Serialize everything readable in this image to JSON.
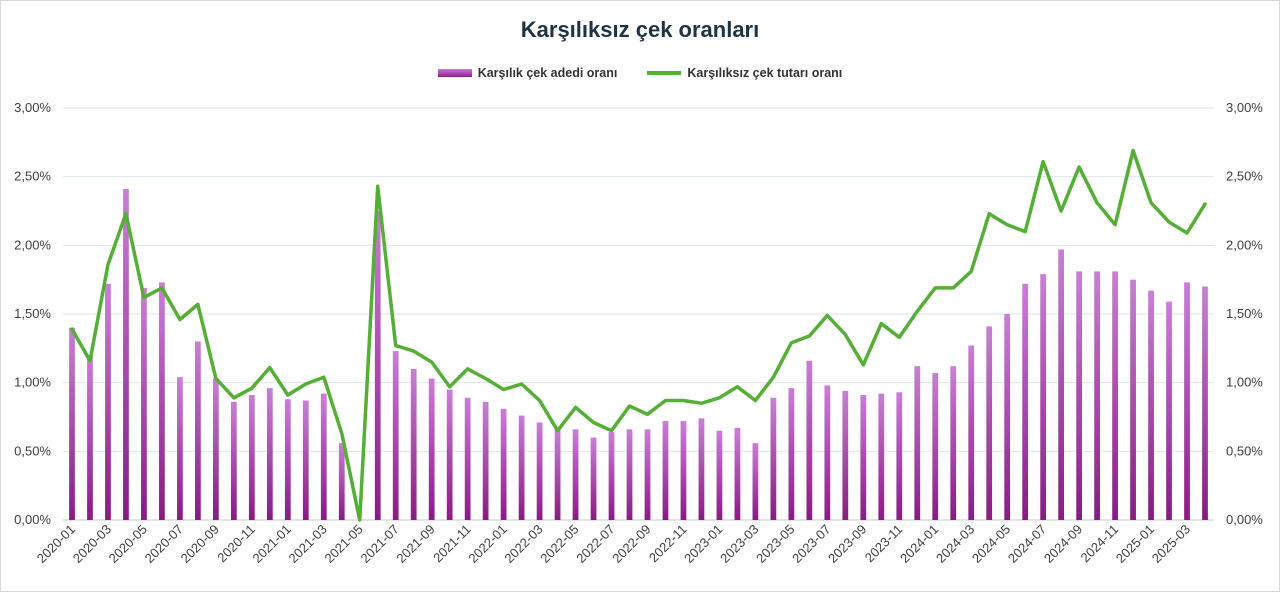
{
  "chart_data": {
    "type": "bar+line",
    "title": "Karşılıksız çek oranları",
    "y_left": {
      "min": 0,
      "max": 3.0,
      "ticks": [
        "0,00%",
        "0,50%",
        "1,00%",
        "1,50%",
        "2,00%",
        "2,50%",
        "3,00%"
      ]
    },
    "y_right": {
      "min": 0,
      "max": 3.0,
      "ticks": [
        "0,00%",
        "0,50%",
        "1,00%",
        "1,50%",
        "2,00%",
        "2,50%",
        "3,00%"
      ]
    },
    "x_tick_labels": [
      "2020-01",
      "2020-03",
      "2020-05",
      "2020-07",
      "2020-09",
      "2020-11",
      "2021-01",
      "2021-03",
      "2021-05",
      "2021-07",
      "2021-09",
      "2021-11",
      "2022-01",
      "2022-03",
      "2022-05",
      "2022-07",
      "2022-09",
      "2022-11",
      "2023-01",
      "2023-03",
      "2023-05",
      "2023-07",
      "2023-09",
      "2023-11",
      "2024-01",
      "2024-03",
      "2024-05",
      "2024-07",
      "2024-09",
      "2024-11",
      "2025-01",
      "2025-03"
    ],
    "categories": [
      "2020-01",
      "2020-02",
      "2020-03",
      "2020-04",
      "2020-05",
      "2020-06",
      "2020-07",
      "2020-08",
      "2020-09",
      "2020-10",
      "2020-11",
      "2020-12",
      "2021-01",
      "2021-02",
      "2021-03",
      "2021-04",
      "2021-05",
      "2021-06",
      "2021-07",
      "2021-08",
      "2021-09",
      "2021-10",
      "2021-11",
      "2021-12",
      "2022-01",
      "2022-02",
      "2022-03",
      "2022-04",
      "2022-05",
      "2022-06",
      "2022-07",
      "2022-08",
      "2022-09",
      "2022-10",
      "2022-11",
      "2022-12",
      "2023-01",
      "2023-02",
      "2023-03",
      "2023-04",
      "2023-05",
      "2023-06",
      "2023-07",
      "2023-08",
      "2023-09",
      "2023-10",
      "2023-11",
      "2023-12",
      "2024-01",
      "2024-02",
      "2024-03",
      "2024-04",
      "2024-05",
      "2024-06",
      "2024-07",
      "2024-08",
      "2024-09",
      "2024-10",
      "2024-11",
      "2024-12",
      "2025-01",
      "2025-02",
      "2025-03",
      "2025-04"
    ],
    "series": [
      {
        "name": "Karşılık çek adedi oranı",
        "type": "bar",
        "color": "#9b2a95",
        "values": [
          1.4,
          1.2,
          1.72,
          2.41,
          1.69,
          1.73,
          1.04,
          1.3,
          1.03,
          0.86,
          0.91,
          0.96,
          0.88,
          0.87,
          0.92,
          0.56,
          null,
          2.25,
          1.23,
          1.1,
          1.03,
          0.95,
          0.89,
          0.86,
          0.81,
          0.76,
          0.71,
          0.66,
          0.66,
          0.6,
          0.64,
          0.66,
          0.66,
          0.72,
          0.72,
          0.74,
          0.65,
          0.67,
          0.56,
          0.89,
          0.96,
          1.16,
          0.98,
          0.94,
          0.91,
          0.92,
          0.93,
          1.12,
          1.07,
          1.12,
          1.27,
          1.41,
          1.5,
          1.72,
          1.79,
          1.97,
          1.81,
          1.81,
          1.81,
          1.75,
          1.67,
          1.59,
          1.73,
          1.7
        ]
      },
      {
        "name": "Karşılıksız çek tutarı oranı",
        "type": "line",
        "color": "#55ae35",
        "values": [
          1.39,
          1.16,
          1.86,
          2.23,
          1.62,
          1.69,
          1.46,
          1.57,
          1.03,
          0.89,
          0.96,
          1.11,
          0.91,
          0.99,
          1.04,
          0.63,
          0.0,
          2.43,
          1.27,
          1.23,
          1.15,
          0.97,
          1.1,
          1.03,
          0.95,
          0.99,
          0.87,
          0.65,
          0.82,
          0.71,
          0.65,
          0.83,
          0.77,
          0.87,
          0.87,
          0.85,
          0.89,
          0.97,
          0.87,
          1.04,
          1.29,
          1.34,
          1.49,
          1.35,
          1.13,
          1.43,
          1.33,
          1.52,
          1.69,
          1.69,
          1.81,
          2.23,
          2.15,
          2.1,
          2.61,
          2.25,
          2.57,
          2.31,
          2.15,
          2.69,
          2.31,
          2.17,
          2.09,
          2.3
        ]
      }
    ],
    "legend": "top-center",
    "grid": true
  }
}
